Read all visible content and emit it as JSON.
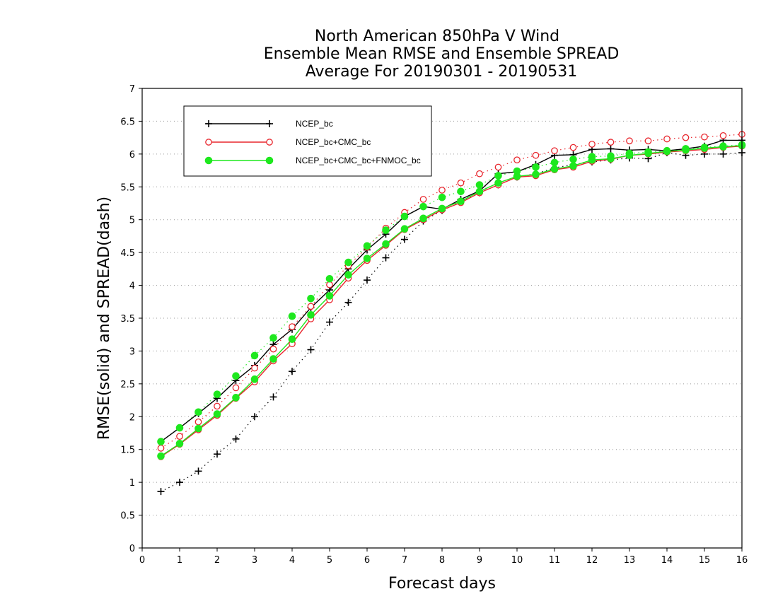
{
  "chart_data": {
    "type": "line",
    "title_lines": [
      "North American 850hPa V Wind",
      "Ensemble Mean RMSE and Ensemble SPREAD",
      "Average For 20190301 - 20190531"
    ],
    "xlabel": "Forecast days",
    "ylabel": "RMSE(solid) and SPREAD(dash)",
    "xlim": [
      0,
      16
    ],
    "ylim": [
      0,
      7
    ],
    "x_ticks": [
      "0",
      "1",
      "2",
      "3",
      "4",
      "5",
      "6",
      "7",
      "8",
      "9",
      "10",
      "11",
      "12",
      "13",
      "14",
      "15",
      "16"
    ],
    "y_ticks": [
      "0",
      "0.5",
      "1",
      "1.5",
      "2",
      "2.5",
      "3",
      "3.5",
      "4",
      "4.5",
      "5",
      "5.5",
      "6",
      "6.5",
      "7"
    ],
    "grid": "dotted horizontal",
    "legend_position": "top-left",
    "x": [
      0.5,
      1,
      1.5,
      2,
      2.5,
      3,
      3.5,
      4,
      4.5,
      5,
      5.5,
      6,
      6.5,
      7,
      7.5,
      8,
      8.5,
      9,
      9.5,
      10,
      10.5,
      11,
      11.5,
      12,
      12.5,
      13,
      13.5,
      14,
      14.5,
      15,
      15.5,
      16
    ],
    "series": [
      {
        "name": "NCEP_bc",
        "color": "#000000",
        "marker": "plus",
        "rmse": [
          1.62,
          1.83,
          2.05,
          2.28,
          2.55,
          2.78,
          3.1,
          3.33,
          3.66,
          3.93,
          4.25,
          4.54,
          4.78,
          5.05,
          5.2,
          5.16,
          5.31,
          5.44,
          5.7,
          5.73,
          5.84,
          5.98,
          5.99,
          6.07,
          6.08,
          6.06,
          6.07,
          6.05,
          6.08,
          6.12,
          6.21,
          6.21
        ],
        "spread": [
          0.86,
          1.0,
          1.17,
          1.43,
          1.66,
          2.0,
          2.3,
          2.69,
          3.02,
          3.44,
          3.74,
          4.08,
          4.42,
          4.7,
          4.98,
          5.14,
          5.27,
          5.41,
          5.53,
          5.65,
          5.7,
          5.79,
          5.84,
          5.88,
          5.91,
          5.94,
          5.93,
          6.02,
          5.98,
          6.0,
          6.0,
          6.02
        ]
      },
      {
        "name": "NCEP_bc+CMC_bc",
        "color": "#e8262d",
        "marker": "open-circle",
        "rmse": [
          1.39,
          1.58,
          1.8,
          2.02,
          2.28,
          2.53,
          2.85,
          3.11,
          3.49,
          3.78,
          4.11,
          4.38,
          4.61,
          4.85,
          5.0,
          5.15,
          5.26,
          5.41,
          5.53,
          5.65,
          5.67,
          5.76,
          5.8,
          5.89,
          5.92,
          5.98,
          6.0,
          6.03,
          6.05,
          6.07,
          6.1,
          6.12
        ],
        "spread": [
          1.52,
          1.7,
          1.92,
          2.16,
          2.44,
          2.74,
          3.03,
          3.37,
          3.68,
          4.01,
          4.3,
          4.58,
          4.87,
          5.11,
          5.31,
          5.45,
          5.56,
          5.7,
          5.8,
          5.91,
          5.98,
          6.05,
          6.1,
          6.15,
          6.18,
          6.2,
          6.2,
          6.23,
          6.25,
          6.26,
          6.28,
          6.3
        ]
      },
      {
        "name": "NCEP_bc+CMC_bc+FNMOC_bc",
        "color": "#1ee81e",
        "marker": "filled-circle",
        "rmse": [
          1.4,
          1.59,
          1.82,
          2.04,
          2.29,
          2.57,
          2.88,
          3.18,
          3.55,
          3.84,
          4.16,
          4.41,
          4.63,
          4.86,
          5.02,
          5.17,
          5.28,
          5.43,
          5.56,
          5.66,
          5.69,
          5.77,
          5.82,
          5.91,
          5.93,
          5.98,
          6.01,
          6.04,
          6.06,
          6.09,
          6.11,
          6.13
        ],
        "spread": [
          1.62,
          1.83,
          2.07,
          2.34,
          2.62,
          2.93,
          3.2,
          3.53,
          3.8,
          4.1,
          4.35,
          4.6,
          4.84,
          5.05,
          5.2,
          5.34,
          5.43,
          5.53,
          5.67,
          5.74,
          5.8,
          5.87,
          5.92,
          5.96,
          5.97,
          6.01,
          6.03,
          6.05,
          6.08,
          6.1,
          6.12,
          6.14
        ]
      }
    ]
  }
}
